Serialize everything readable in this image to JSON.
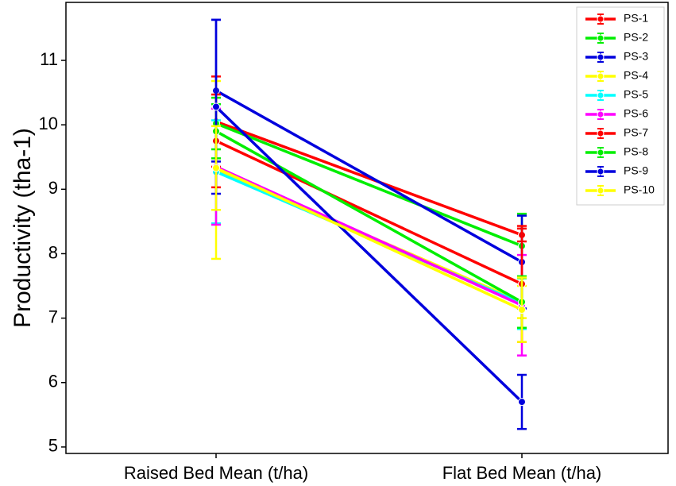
{
  "chart_data": {
    "type": "line",
    "categories": [
      "Raised Bed Mean (t/ha)",
      "Flat Bed Mean (t/ha)"
    ],
    "ylabel": "Productivity (tha-1)",
    "ylim": [
      4.9,
      11.9
    ],
    "yticks": [
      5,
      6,
      7,
      8,
      9,
      10,
      11
    ],
    "legend_position": "top-right",
    "grid": false,
    "series": [
      {
        "name": "PS-1",
        "color": "#ff0000",
        "values": [
          10.05,
          8.29
        ],
        "errors": [
          0.7,
          0.1
        ]
      },
      {
        "name": "PS-2",
        "color": "#00ee00",
        "values": [
          10.02,
          8.12
        ],
        "errors": [
          0.4,
          0.5
        ]
      },
      {
        "name": "PS-3",
        "color": "#0000dd",
        "values": [
          10.53,
          7.87
        ],
        "errors": [
          1.1,
          0.72
        ]
      },
      {
        "name": "PS-4",
        "color": "#ffff00",
        "values": [
          9.3,
          7.25
        ],
        "errors": [
          1.38,
          0.25
        ]
      },
      {
        "name": "PS-5",
        "color": "#00ffff",
        "values": [
          9.27,
          7.23
        ],
        "errors": [
          0.8,
          0.4
        ]
      },
      {
        "name": "PS-6",
        "color": "#ff00ff",
        "values": [
          9.35,
          7.2
        ],
        "errors": [
          0.9,
          0.78
        ]
      },
      {
        "name": "PS-7",
        "color": "#ff0000",
        "values": [
          9.75,
          7.53
        ],
        "errors": [
          0.72,
          0.9
        ]
      },
      {
        "name": "PS-8",
        "color": "#00ee00",
        "values": [
          9.9,
          7.25
        ],
        "errors": [
          0.42,
          0.4
        ]
      },
      {
        "name": "PS-9",
        "color": "#0000dd",
        "values": [
          10.28,
          5.7
        ],
        "errors": [
          1.35,
          0.42
        ]
      },
      {
        "name": "PS-10",
        "color": "#ffff00",
        "values": [
          9.33,
          7.13
        ],
        "errors": [
          0.65,
          0.5
        ]
      }
    ]
  }
}
